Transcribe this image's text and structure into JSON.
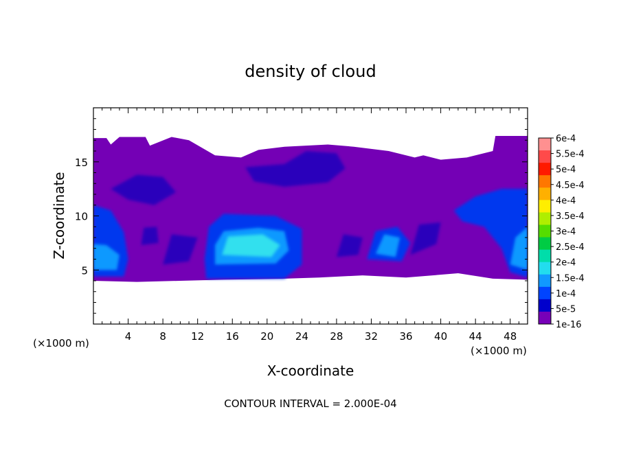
{
  "chart_data": {
    "type": "heatmap",
    "title": "density of cloud",
    "xlabel": "X-coordinate",
    "ylabel": "Z-coordinate",
    "x_units_left": "(×1000 m)",
    "x_units_right": "(×1000 m)",
    "footer": "CONTOUR INTERVAL = 2.000E-04",
    "xlim": [
      0,
      50
    ],
    "ylim": [
      0,
      20
    ],
    "x_ticks": [
      4,
      8,
      12,
      16,
      20,
      24,
      28,
      32,
      36,
      40,
      44,
      48
    ],
    "y_ticks": [
      5,
      10,
      15
    ],
    "grid": false,
    "colorbar": {
      "placement": "right",
      "labels": [
        "6e-4",
        "5.5e-4",
        "5e-4",
        "4.5e-4",
        "4e-4",
        "3.5e-4",
        "3e-4",
        "2.5e-4",
        "2e-4",
        "1.5e-4",
        "1e-4",
        "5e-5",
        "1e-16"
      ],
      "colors": [
        "#ff9090",
        "#ff4a4a",
        "#ff1a00",
        "#ff7700",
        "#ffb000",
        "#ffee00",
        "#b0ee00",
        "#55dd00",
        "#00cc44",
        "#00ddaa",
        "#22ddee",
        "#1199ff",
        "#0044ff",
        "#0000cc",
        "#7700b8"
      ]
    },
    "cloud_regions": [
      {
        "level": "1e-16",
        "color": "#7400b5",
        "description": "cloud envelope",
        "points": [
          [
            0,
            17.2
          ],
          [
            1.5,
            17.2
          ],
          [
            2,
            16.6
          ],
          [
            3,
            17.3
          ],
          [
            6,
            17.3
          ],
          [
            6.5,
            16.5
          ],
          [
            9,
            17.3
          ],
          [
            11,
            17
          ],
          [
            14,
            15.6
          ],
          [
            17,
            15.4
          ],
          [
            19,
            16.1
          ],
          [
            22,
            16.4
          ],
          [
            27,
            16.6
          ],
          [
            30,
            16.4
          ],
          [
            34,
            16
          ],
          [
            37,
            15.4
          ],
          [
            38,
            15.6
          ],
          [
            40,
            15.2
          ],
          [
            43,
            15.4
          ],
          [
            46,
            16
          ],
          [
            46.3,
            17.4
          ],
          [
            50,
            17.4
          ],
          [
            50,
            4.1
          ],
          [
            46,
            4.2
          ],
          [
            42,
            4.7
          ],
          [
            36,
            4.3
          ],
          [
            31,
            4.5
          ],
          [
            26,
            4.3
          ],
          [
            22,
            4.2
          ],
          [
            15,
            4.1
          ],
          [
            10,
            4.0
          ],
          [
            5,
            3.9
          ],
          [
            0,
            4.0
          ]
        ]
      },
      {
        "level": "1e-4",
        "color": "#0038ee",
        "points": [
          [
            13,
            4.2
          ],
          [
            22,
            4.2
          ],
          [
            24,
            5.5
          ],
          [
            24,
            8.8
          ],
          [
            21,
            10.0
          ],
          [
            15,
            10.2
          ],
          [
            13.3,
            9
          ],
          [
            12.8,
            6
          ]
        ]
      },
      {
        "level": "1.5e-4",
        "color": "#1199ff",
        "points": [
          [
            14,
            5.5
          ],
          [
            21,
            5.6
          ],
          [
            22.5,
            6.8
          ],
          [
            22,
            8.6
          ],
          [
            19,
            8.9
          ],
          [
            15,
            8.6
          ],
          [
            14,
            7.3
          ]
        ]
      },
      {
        "level": "2e-4",
        "color": "#33e0ee",
        "points": [
          [
            14.8,
            6.4
          ],
          [
            20.5,
            6.2
          ],
          [
            21.5,
            7.3
          ],
          [
            19.5,
            8.3
          ],
          [
            15.5,
            8.1
          ]
        ]
      },
      {
        "level": "1e-4",
        "color": "#0038ee",
        "points": [
          [
            0,
            4.4
          ],
          [
            3.5,
            4.4
          ],
          [
            4,
            6
          ],
          [
            3.5,
            8.5
          ],
          [
            2,
            10.5
          ],
          [
            0,
            11
          ]
        ]
      },
      {
        "level": "1.5e-4",
        "color": "#1199ff",
        "points": [
          [
            0,
            5
          ],
          [
            2.7,
            5
          ],
          [
            3,
            6.4
          ],
          [
            1.5,
            7.3
          ],
          [
            0,
            7.4
          ]
        ]
      },
      {
        "level": "1e-4",
        "color": "#0038ee",
        "points": [
          [
            41.5,
            10.5
          ],
          [
            44,
            11.8
          ],
          [
            47,
            12.5
          ],
          [
            50,
            12.5
          ],
          [
            50,
            4.3
          ],
          [
            48,
            4.8
          ],
          [
            47,
            7
          ],
          [
            45,
            9
          ],
          [
            42.5,
            9.5
          ]
        ]
      },
      {
        "level": "1.5e-4",
        "color": "#1199ff",
        "points": [
          [
            48,
            5.5
          ],
          [
            50,
            5.0
          ],
          [
            50,
            9
          ],
          [
            48.6,
            8
          ]
        ]
      },
      {
        "level": "1e-4",
        "color": "#0038ee",
        "points": [
          [
            31.5,
            6.0
          ],
          [
            35.5,
            5.8
          ],
          [
            36.5,
            7.5
          ],
          [
            35,
            9
          ],
          [
            32.5,
            8.6
          ]
        ]
      },
      {
        "level": "1.5e-4",
        "color": "#1199ff",
        "points": [
          [
            32.5,
            6.5
          ],
          [
            34.8,
            6.2
          ],
          [
            35.3,
            8.0
          ],
          [
            33.5,
            8.3
          ]
        ]
      },
      {
        "level": "5e-5",
        "color": "#2a00bb",
        "points": [
          [
            17.5,
            14.5
          ],
          [
            22,
            14.8
          ],
          [
            24.5,
            16
          ],
          [
            28,
            15.8
          ],
          [
            29,
            14.4
          ],
          [
            27,
            13.1
          ],
          [
            22,
            12.7
          ],
          [
            18.5,
            13.2
          ]
        ]
      },
      {
        "level": "5e-5",
        "color": "#2a00bb",
        "points": [
          [
            2,
            12.5
          ],
          [
            5,
            13.8
          ],
          [
            8,
            13.6
          ],
          [
            9.5,
            12.2
          ],
          [
            7,
            11.0
          ],
          [
            4,
            11.5
          ]
        ]
      },
      {
        "level": "5e-5",
        "color": "#2a00bb",
        "points": [
          [
            28,
            6.2
          ],
          [
            30.5,
            6.4
          ],
          [
            31,
            8.0
          ],
          [
            28.8,
            8.3
          ]
        ]
      },
      {
        "level": "5e-5",
        "color": "#2a00bb",
        "points": [
          [
            36.5,
            6.4
          ],
          [
            39.5,
            7.4
          ],
          [
            40,
            9.4
          ],
          [
            37.5,
            9.2
          ]
        ]
      },
      {
        "level": "5e-5",
        "color": "#2a00bb",
        "points": [
          [
            5.5,
            7.3
          ],
          [
            7.5,
            7.5
          ],
          [
            7.3,
            9
          ],
          [
            5.8,
            8.9
          ]
        ]
      },
      {
        "level": "5e-5",
        "color": "#2a00bb",
        "points": [
          [
            8,
            5.5
          ],
          [
            11,
            5.8
          ],
          [
            12,
            8.0
          ],
          [
            9,
            8.3
          ]
        ]
      }
    ]
  }
}
